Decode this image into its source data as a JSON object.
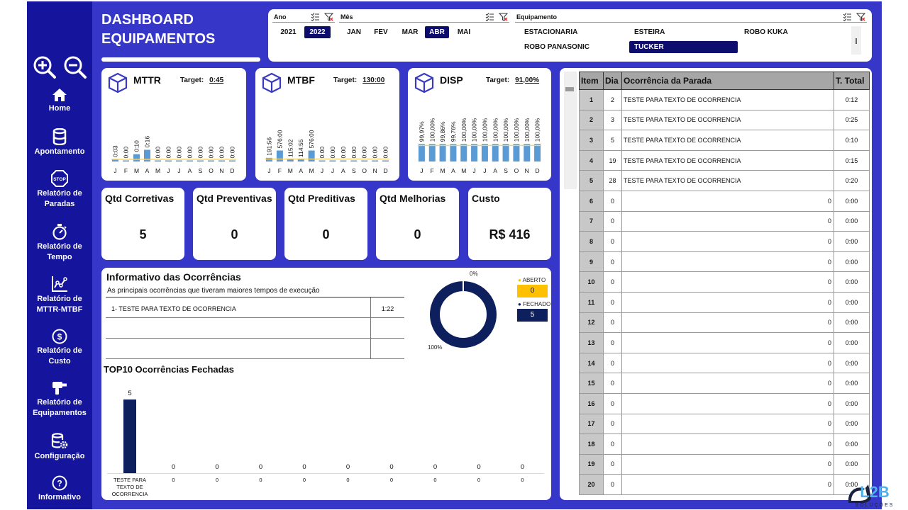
{
  "header": {
    "title_line1": "DASHBOARD",
    "title_line2": "EQUIPAMENTOS"
  },
  "sidebar": {
    "items": [
      {
        "name": "home",
        "label": "Home",
        "icon": "home-icon"
      },
      {
        "name": "apontamento",
        "label": "Apontamento",
        "icon": "database-icon"
      },
      {
        "name": "relatorio-paradas",
        "label1": "Relatório de",
        "label2": "Paradas",
        "icon": "stop-icon",
        "icon_text": "STOP"
      },
      {
        "name": "relatorio-tempo",
        "label1": "Relatório de",
        "label2": "Tempo",
        "icon": "stopwatch-icon"
      },
      {
        "name": "relatorio-mttr",
        "label1": "Relatório de",
        "label2": "MTTR-MTBF",
        "icon": "line-chart-icon"
      },
      {
        "name": "relatorio-custo",
        "label1": "Relatório de",
        "label2": "Custo",
        "icon": "dollar-icon",
        "icon_text": "$"
      },
      {
        "name": "relatorio-equip",
        "label1": "Relatório de",
        "label2": "Equipamentos",
        "icon": "drill-icon"
      },
      {
        "name": "configuracao",
        "label": "Configuração",
        "icon": "database-gear-icon"
      },
      {
        "name": "informativo",
        "label": "Informativo",
        "icon": "question-icon",
        "icon_text": "?"
      }
    ]
  },
  "filters": {
    "ano": {
      "label": "Ano",
      "options": [
        "2021",
        "2022"
      ],
      "selected": "2022"
    },
    "mes": {
      "label": "Mês",
      "options": [
        "JAN",
        "FEV",
        "MAR",
        "ABR",
        "MAI"
      ],
      "selected": "ABR"
    },
    "equipamento": {
      "label": "Equipamento",
      "options": [
        "ESTACIONARIA",
        "ESTEIRA",
        "ROBO KUKA",
        "ROBO PANASONIC",
        "TUCKER"
      ],
      "selected": "TUCKER"
    }
  },
  "months": [
    "J",
    "F",
    "M",
    "A",
    "M",
    "J",
    "J",
    "A",
    "S",
    "O",
    "N",
    "D"
  ],
  "kpis": {
    "mttr": {
      "name": "MTTR",
      "target_label": "Target:",
      "target_value": "0:45",
      "values": [
        0.03,
        0,
        0.1,
        0.16,
        0,
        0,
        0,
        0,
        0,
        0,
        0,
        0
      ],
      "labels": [
        "0:03",
        "0:00",
        "0:10",
        "0:16",
        "0:00",
        "0:00",
        "0:00",
        "0:00",
        "0:00",
        "0:00",
        "0:00",
        "0:00"
      ]
    },
    "mtbf": {
      "name": "MTBF",
      "target_label": "Target:",
      "target_value": "130:00",
      "values": [
        191.56,
        576,
        115.02,
        114.55,
        576,
        0,
        0,
        0,
        0,
        0,
        0,
        0
      ],
      "labels": [
        "191:56",
        "576:00",
        "115:02",
        "114:55",
        "576:00",
        "0:00",
        "0:00",
        "0:00",
        "0:00",
        "0:00",
        "0:00",
        "0:00"
      ]
    },
    "disp": {
      "name": "DISP",
      "target_label": "Target:",
      "target_value": "91,00%",
      "values": [
        99.97,
        100,
        99.86,
        99.76,
        100,
        100,
        100,
        100,
        100,
        100,
        100,
        100
      ],
      "labels": [
        "99,97%",
        "100,00%",
        "99,86%",
        "99,76%",
        "100,00%",
        "100,00%",
        "100,00%",
        "100,00%",
        "100,00%",
        "100,00%",
        "100,00%",
        "100,00%"
      ]
    }
  },
  "qtd": {
    "corretivas": {
      "label": "Qtd Corretivas",
      "value": "5"
    },
    "preventivas": {
      "label": "Qtd Preventivas",
      "value": "0"
    },
    "preditivas": {
      "label": "Qtd Preditivas",
      "value": "0"
    },
    "melhorias": {
      "label": "Qtd Melhorias",
      "value": "0"
    },
    "custo": {
      "label": "Custo",
      "value": "R$ 416"
    }
  },
  "informativo": {
    "title": "Informativo das Ocorrências",
    "subtitle": "As principais ocorrências que tiveram maiores tempos de execução",
    "rows": [
      {
        "text": "1-   TESTE PARA TEXTO DE OCORRENCIA",
        "time": "1:22"
      },
      {
        "text": "",
        "time": ""
      },
      {
        "text": "",
        "time": ""
      }
    ],
    "donut": {
      "aberto_pct": "0%",
      "fechado_pct": "100%",
      "aberto_label": "ABERTO",
      "aberto_value": "0",
      "fechado_label": "FECHADO",
      "fechado_value": "5",
      "aberto_color": "#ffc000",
      "fechado_color": "#0d1f5c"
    }
  },
  "chart_data": {
    "type": "bar",
    "title": "TOP10 Ocorrências Fechadas",
    "categories": [
      "TESTE PARA TEXTO DE OCORRENCIA",
      "0",
      "0",
      "0",
      "0",
      "0",
      "0",
      "0",
      "0",
      "0"
    ],
    "values": [
      5,
      0,
      0,
      0,
      0,
      0,
      0,
      0,
      0,
      0
    ],
    "value_labels": [
      "5",
      "0",
      "0",
      "0",
      "0",
      "0",
      "0",
      "0",
      "0",
      "0"
    ],
    "cat_lines": [
      "TESTE PARA",
      "TEXTO DE",
      "OCORRENCIA"
    ],
    "color": "#0d1f5c"
  },
  "ocorrencias": {
    "headers": {
      "item": "Item",
      "dia": "Dia",
      "ocorrencia": "Ocorrência da Parada",
      "total": "T. Total"
    },
    "rows": [
      {
        "item": "1",
        "dia": "2",
        "occ": "TESTE PARA TEXTO DE OCORRENCIA",
        "total": "0:12"
      },
      {
        "item": "2",
        "dia": "3",
        "occ": "TESTE PARA TEXTO DE OCORRENCIA",
        "total": "0:25"
      },
      {
        "item": "3",
        "dia": "5",
        "occ": "TESTE PARA TEXTO DE OCORRENCIA",
        "total": "0:10"
      },
      {
        "item": "4",
        "dia": "19",
        "occ": "TESTE PARA TEXTO DE OCORRENCIA",
        "total": "0:15"
      },
      {
        "item": "5",
        "dia": "28",
        "occ": "TESTE PARA TEXTO DE OCORRENCIA",
        "total": "0:20"
      },
      {
        "item": "6",
        "dia": "0",
        "occ": "0",
        "total": "0:00"
      },
      {
        "item": "7",
        "dia": "0",
        "occ": "0",
        "total": "0:00"
      },
      {
        "item": "8",
        "dia": "0",
        "occ": "0",
        "total": "0:00"
      },
      {
        "item": "9",
        "dia": "0",
        "occ": "0",
        "total": "0:00"
      },
      {
        "item": "10",
        "dia": "0",
        "occ": "0",
        "total": "0:00"
      },
      {
        "item": "11",
        "dia": "0",
        "occ": "0",
        "total": "0:00"
      },
      {
        "item": "12",
        "dia": "0",
        "occ": "0",
        "total": "0:00"
      },
      {
        "item": "13",
        "dia": "0",
        "occ": "0",
        "total": "0:00"
      },
      {
        "item": "14",
        "dia": "0",
        "occ": "0",
        "total": "0:00"
      },
      {
        "item": "15",
        "dia": "0",
        "occ": "0",
        "total": "0:00"
      },
      {
        "item": "16",
        "dia": "0",
        "occ": "0",
        "total": "0:00"
      },
      {
        "item": "17",
        "dia": "0",
        "occ": "0",
        "total": "0:00"
      },
      {
        "item": "18",
        "dia": "0",
        "occ": "0",
        "total": "0:00"
      },
      {
        "item": "19",
        "dia": "0",
        "occ": "0",
        "total": "0:00"
      },
      {
        "item": "20",
        "dia": "0",
        "occ": "0",
        "total": "0:00"
      }
    ]
  },
  "logo": {
    "text": "L2B",
    "sub": "SOLUÇÕES"
  },
  "colors": {
    "frame": "#3636c9",
    "sidebar": "#14149c",
    "bar": "#5b9bd5",
    "target_line": "#f3d37a",
    "selected": "#0d0d6e"
  }
}
